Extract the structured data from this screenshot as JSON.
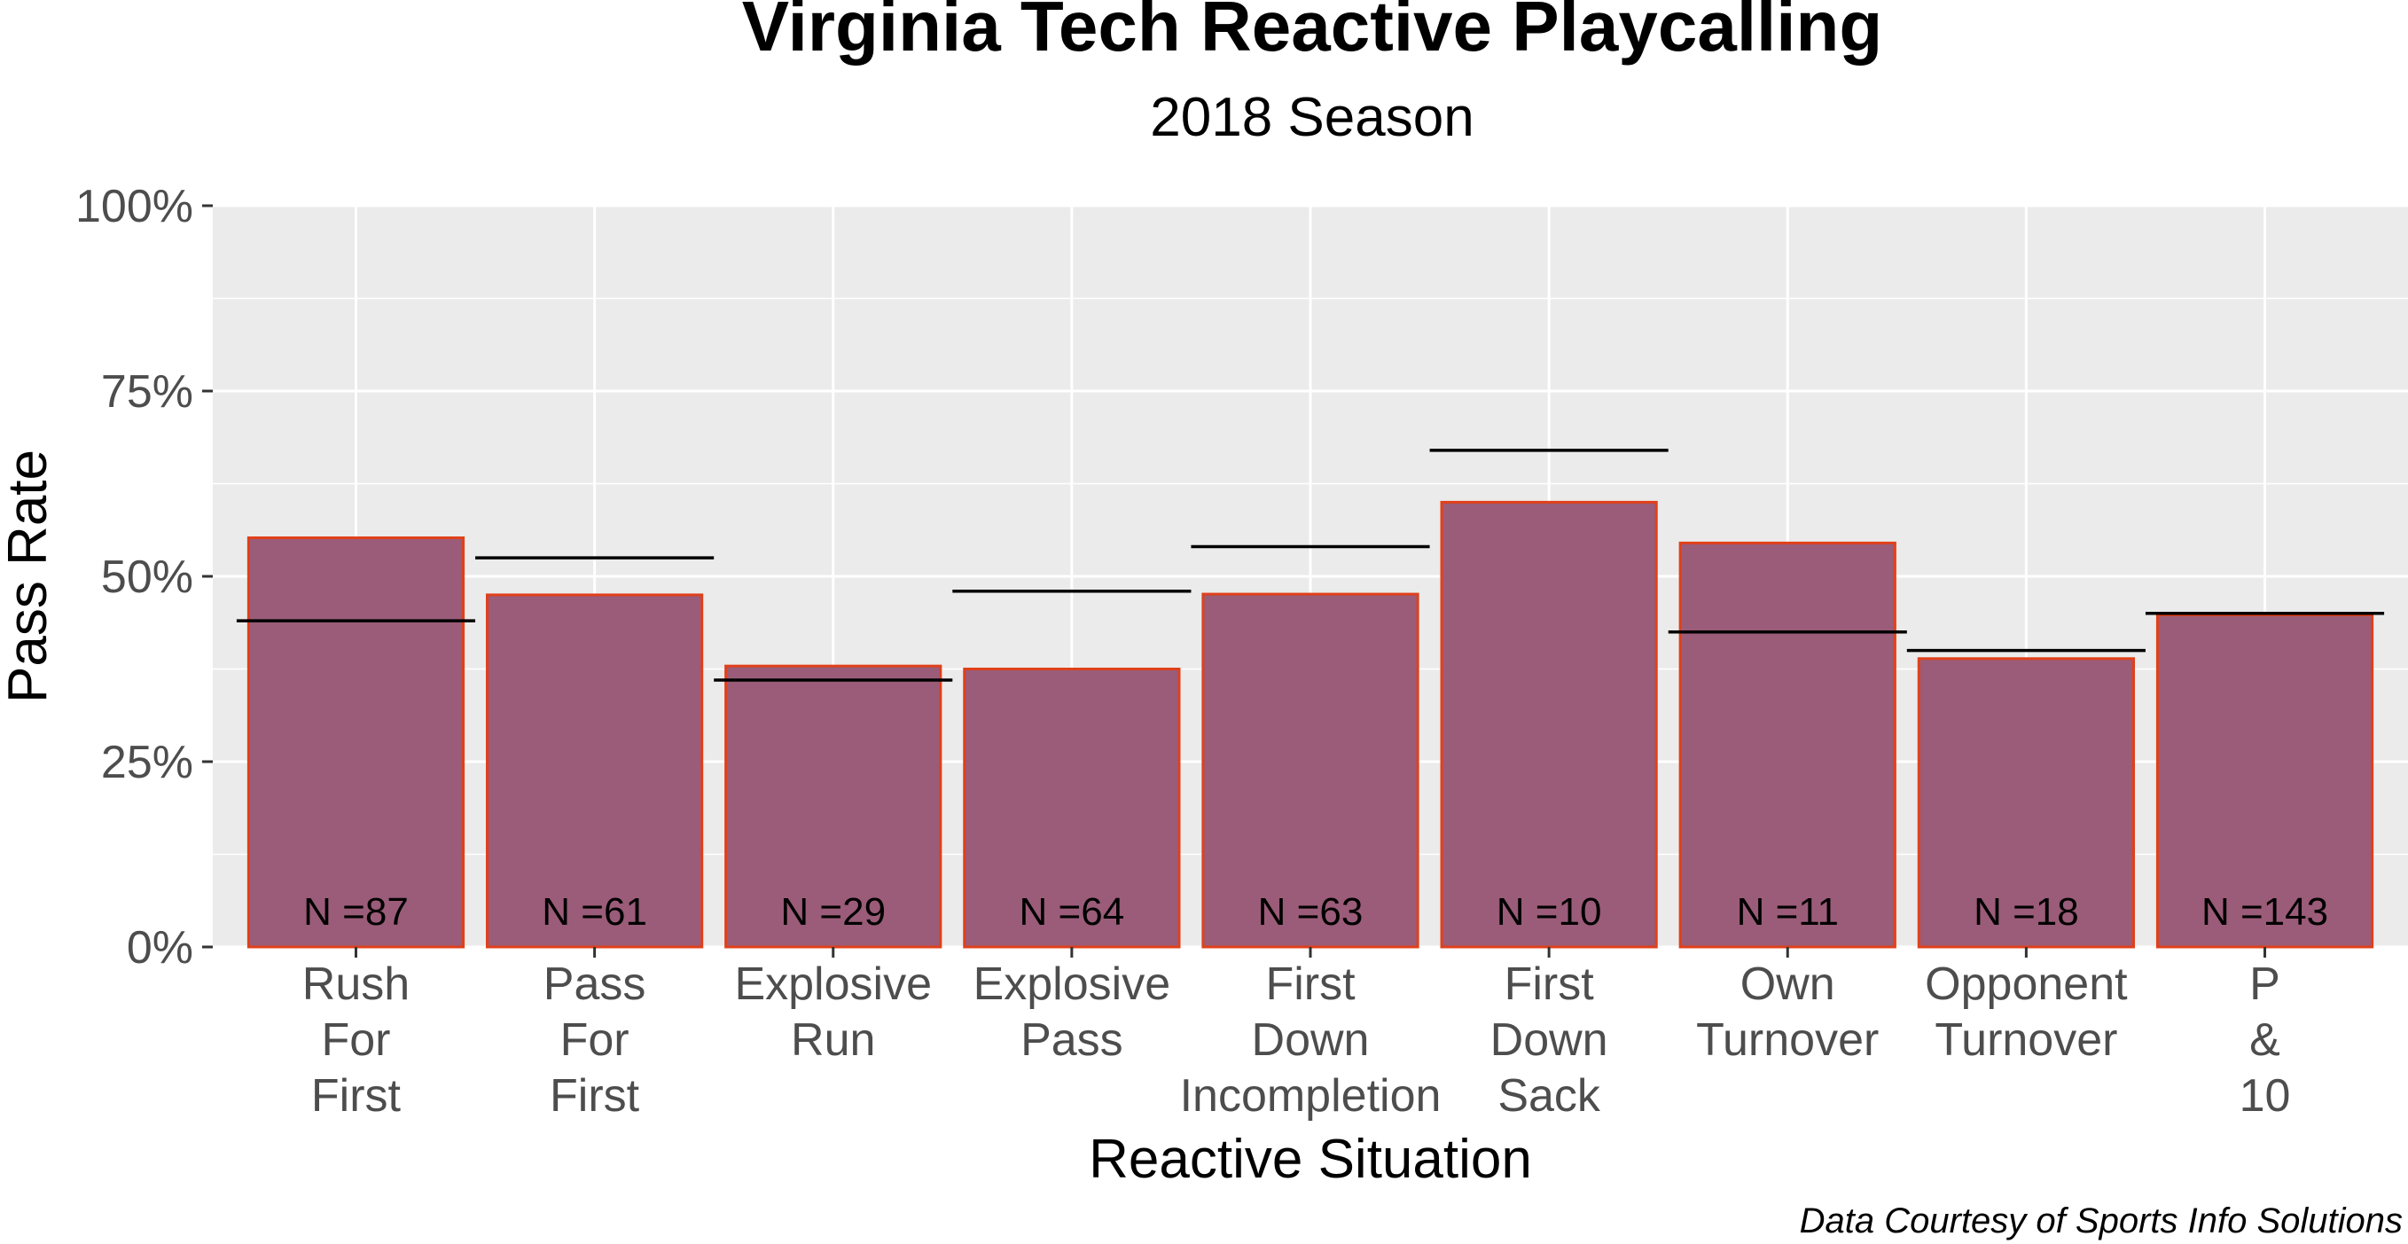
{
  "chart_data": {
    "type": "bar",
    "title": "Virginia Tech Reactive Playcalling",
    "subtitle": "2018 Season",
    "xlabel": "Reactive Situation",
    "ylabel": "Pass Rate",
    "caption": "Data Courtesy of Sports Info Solutions",
    "ylim": [
      0,
      1
    ],
    "yticks": [
      0,
      0.25,
      0.5,
      0.75,
      1.0
    ],
    "ytick_labels": [
      "0%",
      "25%",
      "50%",
      "75%",
      "100%"
    ],
    "grid": true,
    "legend": "none",
    "categories": [
      "Rush For First",
      "Pass For First",
      "Explosive Run",
      "Explosive Pass",
      "First Down Incompletion",
      "First Down Sack",
      "Own Turnover",
      "Opponent Turnover",
      "P & 10"
    ],
    "category_label_lines": [
      [
        "Rush",
        "For",
        "First"
      ],
      [
        "Pass",
        "For",
        "First"
      ],
      [
        "Explosive",
        "Run"
      ],
      [
        "Explosive",
        "Pass"
      ],
      [
        "First",
        "Down",
        "Incompletion"
      ],
      [
        "First",
        "Down",
        "Sack"
      ],
      [
        "Own",
        "Turnover"
      ],
      [
        "Opponent",
        "Turnover"
      ],
      [
        "P",
        "&",
        "10"
      ]
    ],
    "values": [
      0.552,
      0.475,
      0.379,
      0.375,
      0.476,
      0.6,
      0.545,
      0.389,
      0.448
    ],
    "reference_values": [
      0.44,
      0.525,
      0.36,
      0.48,
      0.54,
      0.67,
      0.425,
      0.4,
      0.45
    ],
    "n_labels": [
      "N =87",
      "N =61",
      "N =29",
      "N =64",
      "N =63",
      "N =10",
      "N =11",
      "N =18",
      "N =143"
    ],
    "colors": {
      "bar_fill": "#9a5c78",
      "bar_stroke": "#e0401a",
      "panel_bg": "#ebebeb",
      "grid": "#ffffff",
      "reference_line": "#000000",
      "tick_text": "#4d4d4d"
    }
  }
}
